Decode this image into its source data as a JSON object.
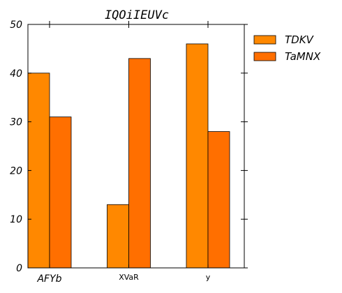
{
  "chart_data": {
    "type": "bar",
    "title": "IQOiIEUVc",
    "categories": [
      "AFYb",
      "XVaR",
      "y"
    ],
    "series": [
      {
        "name": "TDKV",
        "values": [
          40,
          13,
          46
        ],
        "color": "#ff8800"
      },
      {
        "name": "TaMNX",
        "values": [
          31,
          43,
          28
        ],
        "color": "#ff6f00"
      }
    ],
    "ylim": [
      0,
      50
    ],
    "yticks": [
      0,
      10,
      20,
      30,
      40,
      50
    ],
    "grid": false,
    "legend": "outside-right-top"
  }
}
